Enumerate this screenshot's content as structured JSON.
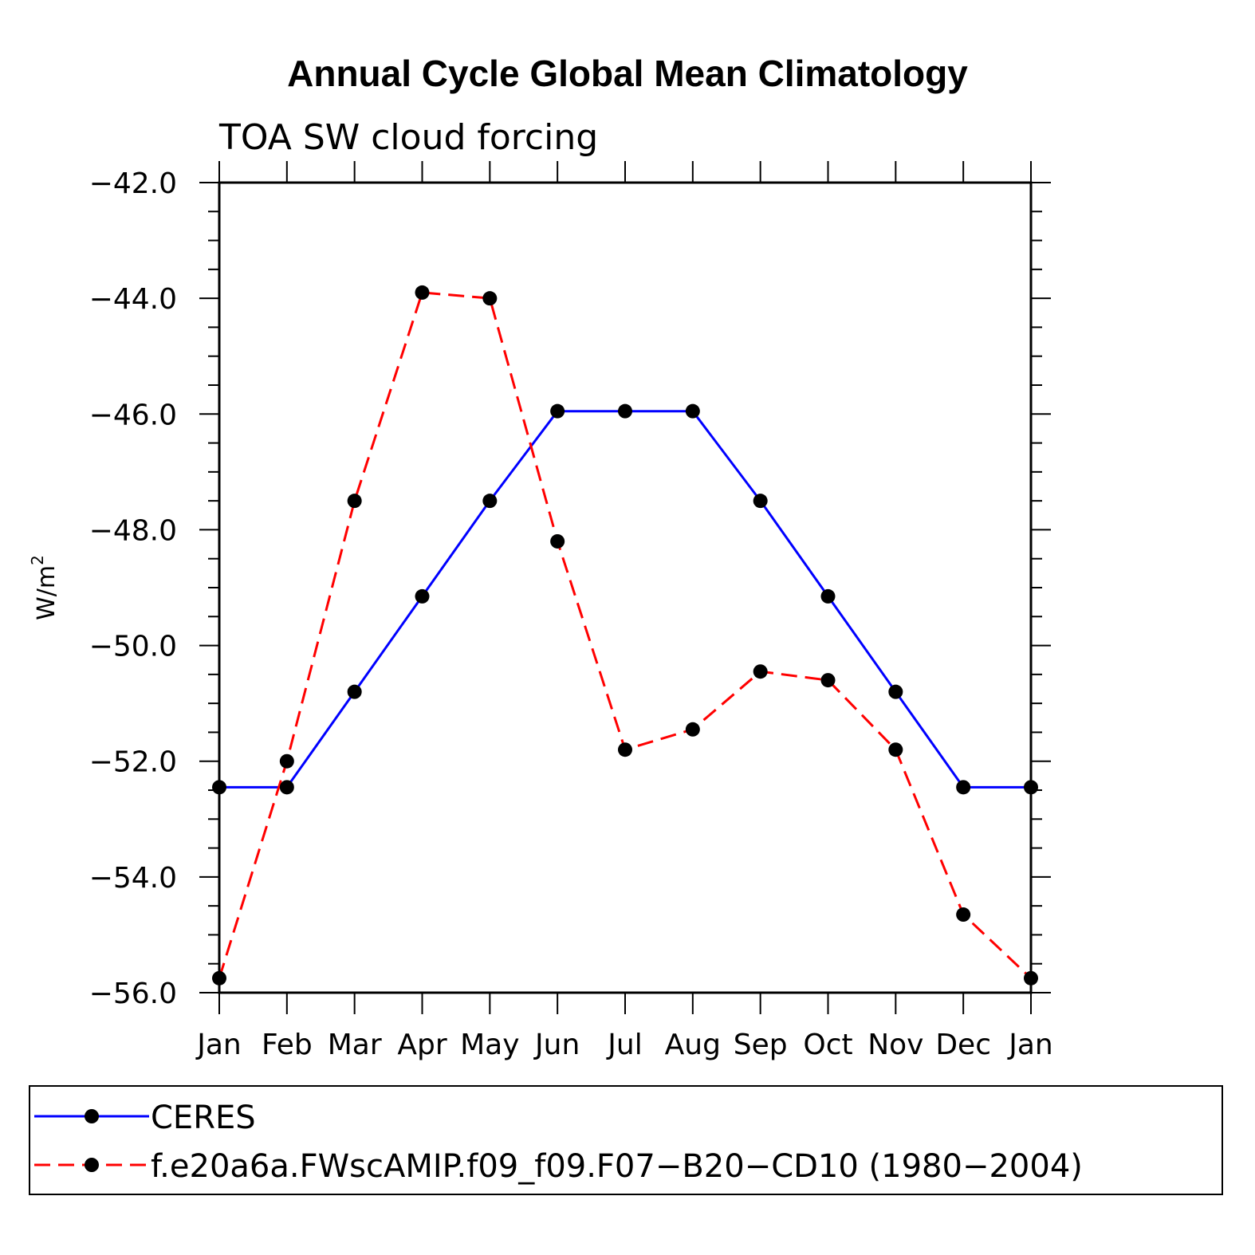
{
  "chart_data": {
    "type": "line",
    "title": "Annual Cycle Global Mean Climatology",
    "subtitle": "TOA SW cloud forcing",
    "ylabel": "W/m",
    "ylabel_sup": "2",
    "xlabel": "",
    "categories": [
      "Jan",
      "Feb",
      "Mar",
      "Apr",
      "May",
      "Jun",
      "Jul",
      "Aug",
      "Sep",
      "Oct",
      "Nov",
      "Dec",
      "Jan"
    ],
    "ylim": [
      -56.0,
      -42.0
    ],
    "yticks": [
      -42.0,
      -44.0,
      -46.0,
      -48.0,
      -50.0,
      -52.0,
      -54.0,
      -56.0
    ],
    "ytick_labels": [
      "−42.0",
      "−44.0",
      "−46.0",
      "−48.0",
      "−50.0",
      "−52.0",
      "−54.0",
      "−56.0"
    ],
    "grid": false,
    "legend_position": "bottom",
    "series": [
      {
        "name": "CERES",
        "color": "#0000ff",
        "dash": "solid",
        "marker": "circle",
        "values": [
          -52.45,
          -52.45,
          -50.8,
          -49.15,
          -47.5,
          -45.95,
          -45.95,
          -45.95,
          -47.5,
          -49.15,
          -50.8,
          -52.45,
          -52.45
        ]
      },
      {
        "name": "f.e20a6a.FWscAMIP.f09_f09.F07−B20−CD10 (1980−2004)",
        "color": "#ff0000",
        "dash": "dashed",
        "marker": "circle",
        "values": [
          -55.75,
          -52.0,
          -47.5,
          -43.9,
          -44.0,
          -48.2,
          -51.8,
          -51.45,
          -50.45,
          -50.6,
          -51.8,
          -54.65,
          -55.75
        ]
      }
    ]
  }
}
